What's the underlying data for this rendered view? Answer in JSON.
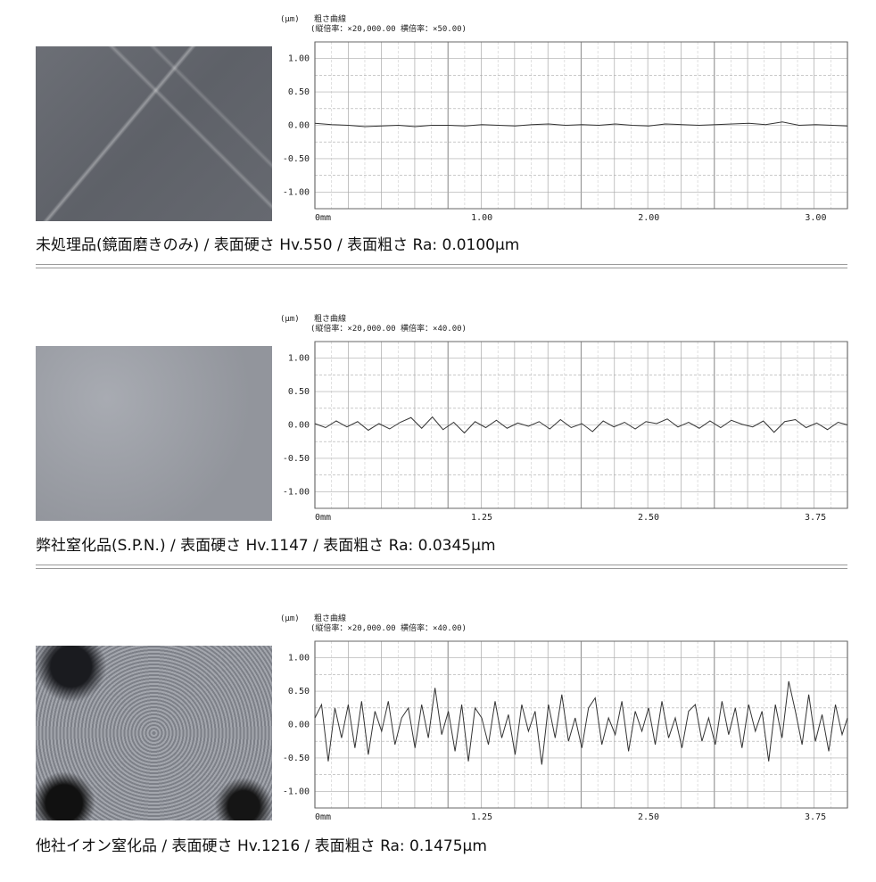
{
  "header": {
    "unit": "(μm)",
    "title": "粗さ曲線"
  },
  "samples": [
    {
      "caption": "未処理品(鏡面磨きのみ) / 表面硬さ Hv.550 / 表面粗さ Ra: 0.0100μm",
      "magnification": "(縦倍率：×20,000.00 横倍率：×50.00)",
      "chart_data": {
        "type": "line",
        "ylim": [
          -1.25,
          1.25
        ],
        "xlim": [
          0,
          3.19
        ],
        "yticks": [
          "1.00",
          "0.50",
          "0.00",
          "-0.50",
          "-1.00"
        ],
        "xticks": [
          {
            "v": 0,
            "label": "0mm"
          },
          {
            "v": 1,
            "label": "1.00"
          },
          {
            "v": 2,
            "label": "2.00"
          },
          {
            "v": 3,
            "label": "3.00"
          }
        ],
        "grid": true,
        "x": [
          0,
          0.1,
          0.2,
          0.3,
          0.4,
          0.5,
          0.6,
          0.7,
          0.8,
          0.9,
          1.0,
          1.1,
          1.2,
          1.3,
          1.4,
          1.5,
          1.6,
          1.7,
          1.8,
          1.9,
          2.0,
          2.1,
          2.2,
          2.3,
          2.4,
          2.5,
          2.6,
          2.7,
          2.8,
          2.9,
          3.0,
          3.1,
          3.19
        ],
        "y": [
          0.03,
          0.01,
          0.0,
          -0.02,
          -0.01,
          0.0,
          -0.02,
          0.0,
          0.0,
          -0.01,
          0.01,
          0.0,
          -0.01,
          0.01,
          0.02,
          0.0,
          0.01,
          0.0,
          0.02,
          0.0,
          -0.01,
          0.02,
          0.01,
          0.0,
          0.01,
          0.02,
          0.03,
          0.01,
          0.05,
          0.0,
          0.01,
          0.0,
          -0.01
        ]
      }
    },
    {
      "caption": "弊社窒化品(S.P.N.) / 表面硬さ Hv.1147 / 表面粗さ Ra: 0.0345μm",
      "magnification": "(縦倍率：×20,000.00 横倍率：×40.00)",
      "chart_data": {
        "type": "line",
        "ylim": [
          -1.25,
          1.25
        ],
        "xlim": [
          0,
          3.99
        ],
        "yticks": [
          "1.00",
          "0.50",
          "0.00",
          "-0.50",
          "-1.00"
        ],
        "xticks": [
          {
            "v": 0,
            "label": "0mm"
          },
          {
            "v": 1.25,
            "label": "1.25"
          },
          {
            "v": 2.5,
            "label": "2.50"
          },
          {
            "v": 3.75,
            "label": "3.75"
          }
        ],
        "grid": true,
        "x": [
          0,
          0.08,
          0.16,
          0.24,
          0.32,
          0.4,
          0.48,
          0.56,
          0.64,
          0.72,
          0.8,
          0.88,
          0.96,
          1.04,
          1.12,
          1.2,
          1.28,
          1.36,
          1.44,
          1.52,
          1.6,
          1.68,
          1.76,
          1.84,
          1.92,
          2.0,
          2.08,
          2.16,
          2.24,
          2.32,
          2.4,
          2.48,
          2.56,
          2.64,
          2.72,
          2.8,
          2.88,
          2.96,
          3.04,
          3.12,
          3.2,
          3.28,
          3.36,
          3.44,
          3.52,
          3.6,
          3.68,
          3.76,
          3.84,
          3.92,
          3.99
        ],
        "y": [
          0.02,
          -0.04,
          0.06,
          -0.03,
          0.05,
          -0.08,
          0.02,
          -0.06,
          0.04,
          0.11,
          -0.05,
          0.12,
          -0.07,
          0.04,
          -0.12,
          0.05,
          -0.04,
          0.07,
          -0.05,
          0.03,
          -0.02,
          0.05,
          -0.06,
          0.08,
          -0.04,
          0.02,
          -0.1,
          0.06,
          -0.03,
          0.04,
          -0.06,
          0.05,
          0.02,
          0.09,
          -0.03,
          0.04,
          -0.05,
          0.06,
          -0.04,
          0.07,
          0.01,
          -0.03,
          0.06,
          -0.11,
          0.05,
          0.08,
          -0.04,
          0.03,
          -0.07,
          0.04,
          0.0
        ]
      }
    },
    {
      "caption": "他社イオン窒化品 / 表面硬さ Hv.1216 / 表面粗さ Ra: 0.1475μm",
      "magnification": "(縦倍率：×20,000.00 横倍率：×40.00)",
      "chart_data": {
        "type": "line",
        "ylim": [
          -1.25,
          1.25
        ],
        "xlim": [
          0,
          3.99
        ],
        "yticks": [
          "1.00",
          "0.50",
          "0.00",
          "-0.50",
          "-1.00"
        ],
        "xticks": [
          {
            "v": 0,
            "label": "0mm"
          },
          {
            "v": 1.25,
            "label": "1.25"
          },
          {
            "v": 2.5,
            "label": "2.50"
          },
          {
            "v": 3.75,
            "label": "3.75"
          }
        ],
        "grid": true,
        "x": [
          0,
          0.05,
          0.1,
          0.15,
          0.2,
          0.25,
          0.3,
          0.35,
          0.4,
          0.45,
          0.5,
          0.55,
          0.6,
          0.65,
          0.7,
          0.75,
          0.8,
          0.85,
          0.9,
          0.95,
          1.0,
          1.05,
          1.1,
          1.15,
          1.2,
          1.25,
          1.3,
          1.35,
          1.4,
          1.45,
          1.5,
          1.55,
          1.6,
          1.65,
          1.7,
          1.75,
          1.8,
          1.85,
          1.9,
          1.95,
          2.0,
          2.05,
          2.1,
          2.15,
          2.2,
          2.25,
          2.3,
          2.35,
          2.4,
          2.45,
          2.5,
          2.55,
          2.6,
          2.65,
          2.7,
          2.75,
          2.8,
          2.85,
          2.9,
          2.95,
          3.0,
          3.05,
          3.1,
          3.15,
          3.2,
          3.25,
          3.3,
          3.35,
          3.4,
          3.45,
          3.5,
          3.55,
          3.6,
          3.65,
          3.7,
          3.75,
          3.8,
          3.85,
          3.9,
          3.95,
          3.99
        ],
        "y": [
          0.1,
          0.3,
          -0.55,
          0.25,
          -0.2,
          0.3,
          -0.35,
          0.35,
          -0.45,
          0.2,
          -0.1,
          0.35,
          -0.3,
          0.1,
          0.25,
          -0.35,
          0.3,
          -0.2,
          0.55,
          -0.15,
          0.2,
          -0.4,
          0.3,
          -0.55,
          0.25,
          0.1,
          -0.3,
          0.35,
          -0.2,
          0.15,
          -0.45,
          0.3,
          -0.1,
          0.2,
          -0.6,
          0.3,
          -0.2,
          0.45,
          -0.25,
          0.1,
          -0.35,
          0.25,
          0.4,
          -0.3,
          0.1,
          -0.15,
          0.35,
          -0.4,
          0.2,
          -0.1,
          0.25,
          -0.3,
          0.35,
          -0.2,
          0.1,
          -0.35,
          0.2,
          0.3,
          -0.25,
          0.1,
          -0.3,
          0.35,
          -0.15,
          0.25,
          -0.35,
          0.3,
          -0.1,
          0.2,
          -0.55,
          0.3,
          -0.2,
          0.65,
          0.2,
          -0.3,
          0.45,
          -0.25,
          0.15,
          -0.4,
          0.3,
          -0.15,
          0.1
        ]
      }
    }
  ]
}
